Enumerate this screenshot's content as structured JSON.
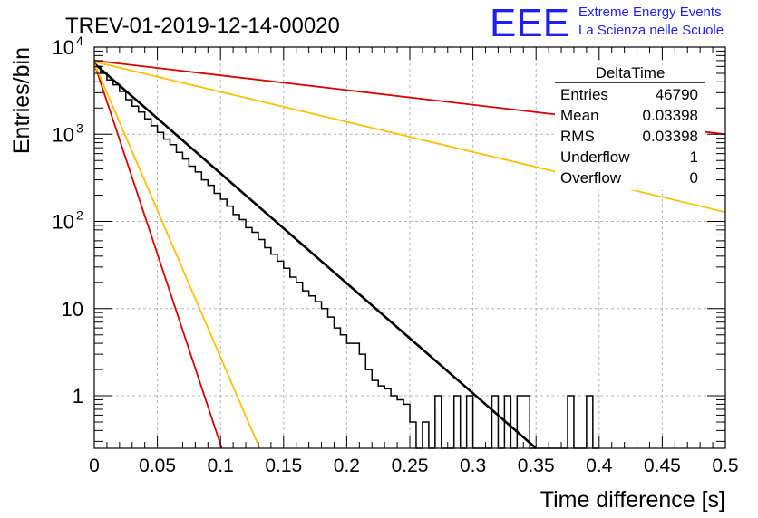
{
  "header": {
    "title": "TREV-01-2019-12-14-00020",
    "logo_text": "EEE",
    "org_line1": "Extreme Energy Events",
    "org_line2": "La Scienza nelle Scuole"
  },
  "stats_box": {
    "title": "DeltaTime",
    "rows": [
      {
        "label": "Entries",
        "value": "46790"
      },
      {
        "label": "Mean",
        "value": "0.03398"
      },
      {
        "label": "RMS",
        "value": "0.03398"
      },
      {
        "label": "Underflow",
        "value": "1"
      },
      {
        "label": "Overflow",
        "value": "0"
      }
    ]
  },
  "colors": {
    "histogram": "#000000",
    "fit": "#000000",
    "red_reference": "#dd0000",
    "orange_reference": "#ffc000",
    "logo": "#1e1ef0",
    "grid": "#b4b4b4"
  },
  "chart_data": {
    "type": "line",
    "title": "TREV-01-2019-12-14-00020",
    "xlabel": "Time difference [s]",
    "ylabel": "Entries/bin",
    "xlim": [
      0,
      0.5
    ],
    "ylim": [
      0.25,
      10000
    ],
    "y_scale": "log",
    "grid": true,
    "x_ticks": [
      "0",
      "0.05",
      "0.1",
      "0.15",
      "0.2",
      "0.25",
      "0.3",
      "0.35",
      "0.4",
      "0.45",
      "0.5"
    ],
    "y_ticks": [
      {
        "value": 1,
        "base": "1",
        "exp": ""
      },
      {
        "value": 10,
        "base": "10",
        "exp": ""
      },
      {
        "value": 100,
        "base": "10",
        "exp": "2"
      },
      {
        "value": 1000,
        "base": "10",
        "exp": "3"
      },
      {
        "value": 10000,
        "base": "10",
        "exp": "4"
      }
    ],
    "histogram": {
      "bin_width": 0.005,
      "bin_lows": [
        0,
        0.005,
        0.01,
        0.015,
        0.02,
        0.025,
        0.03,
        0.035,
        0.04,
        0.045,
        0.05,
        0.055,
        0.06,
        0.065,
        0.07,
        0.075,
        0.08,
        0.085,
        0.09,
        0.095,
        0.1,
        0.105,
        0.11,
        0.115,
        0.12,
        0.125,
        0.13,
        0.135,
        0.14,
        0.145,
        0.15,
        0.155,
        0.16,
        0.165,
        0.17,
        0.175,
        0.18,
        0.185,
        0.19,
        0.195,
        0.2,
        0.205,
        0.21,
        0.215,
        0.22,
        0.225,
        0.23,
        0.235,
        0.24,
        0.245,
        0.25,
        0.255,
        0.26,
        0.265,
        0.27,
        0.275,
        0.28,
        0.285,
        0.29,
        0.295,
        0.3,
        0.305,
        0.31,
        0.315,
        0.32,
        0.325,
        0.33,
        0.335,
        0.34,
        0.345,
        0.35,
        0.355,
        0.36,
        0.365,
        0.37,
        0.375,
        0.38,
        0.385,
        0.39,
        0.395
      ],
      "counts": [
        6000,
        5000,
        4200,
        3700,
        3100,
        2500,
        2100,
        1800,
        1500,
        1250,
        1050,
        880,
        760,
        620,
        520,
        430,
        370,
        300,
        260,
        210,
        180,
        150,
        120,
        105,
        85,
        75,
        62,
        50,
        42,
        35,
        29,
        23,
        20,
        16,
        14,
        12,
        10,
        8,
        6,
        5,
        4,
        4,
        3,
        2,
        1.5,
        1.3,
        1.2,
        1,
        0.9,
        0.8,
        0.5,
        0,
        0.5,
        0,
        1,
        0,
        0,
        1,
        0,
        1,
        0,
        0,
        0,
        1,
        0,
        1,
        0,
        1,
        1,
        0,
        0,
        0,
        0,
        0,
        0,
        1,
        0,
        0,
        1,
        0
      ]
    },
    "series": [
      {
        "name": "",
        "color": "#000000",
        "x": [
          0,
          0.35
        ],
        "y": [
          6500,
          0.25
        ]
      },
      {
        "name": "",
        "color": "#dd0000",
        "x": [
          0,
          0.5
        ],
        "y": [
          7000,
          1000
        ]
      },
      {
        "name": "",
        "color": "#ffc000",
        "x": [
          0,
          0.5
        ],
        "y": [
          6800,
          128
        ]
      },
      {
        "name": "",
        "color": "#dd0000",
        "x": [
          0,
          0.101
        ],
        "y": [
          6500,
          0.25
        ]
      },
      {
        "name": "",
        "color": "#ffc000",
        "x": [
          0,
          0.131
        ],
        "y": [
          6500,
          0.25
        ]
      }
    ]
  }
}
